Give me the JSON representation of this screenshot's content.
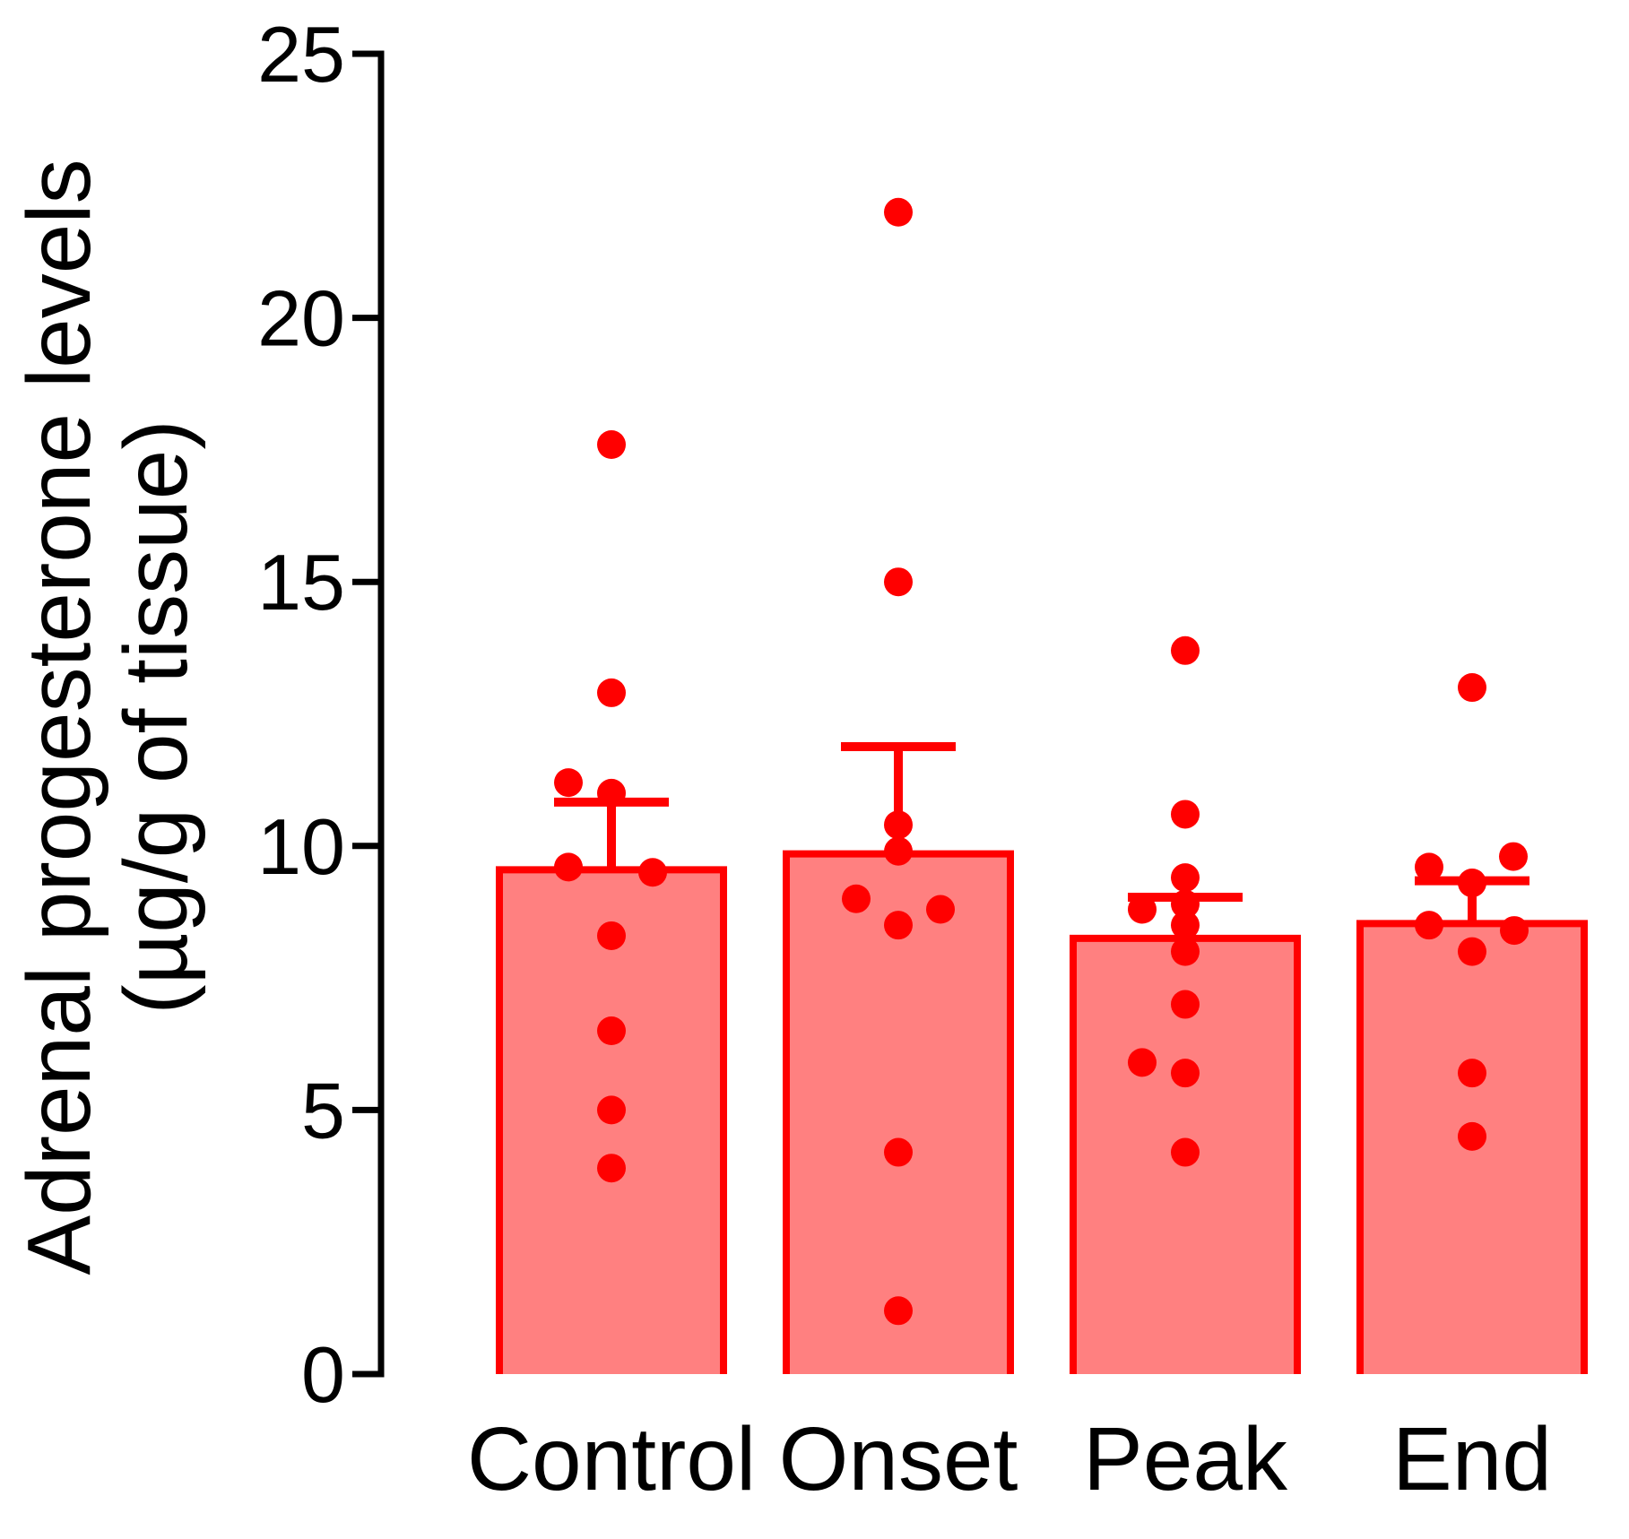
{
  "chart_data": {
    "type": "bar",
    "title": "",
    "ylabel": [
      "Adrenal progesterone levels",
      "(µg/g of tissue)"
    ],
    "xlabel": "",
    "ylim": [
      0,
      25
    ],
    "yticks": [
      0,
      5,
      10,
      15,
      20,
      25
    ],
    "grid": false,
    "legend": false,
    "colors": {
      "accent": "#ff0000",
      "bar_fill": "#ff8080",
      "axis": "#000000",
      "text": "#000000"
    },
    "categories": [
      "Control",
      "Onset",
      "Peak",
      "End"
    ],
    "error_bar_type": "SEM, upper only",
    "groups": [
      {
        "label": "Control",
        "mean": 9.55,
        "sem": 1.28,
        "points": [
          [
            17.6,
            0
          ],
          [
            12.9,
            0
          ],
          [
            11.2,
            -48
          ],
          [
            11.0,
            0
          ],
          [
            9.6,
            -48
          ],
          [
            9.5,
            46
          ],
          [
            8.3,
            0
          ],
          [
            6.5,
            0
          ],
          [
            5.0,
            0
          ],
          [
            3.9,
            0
          ]
        ]
      },
      {
        "label": "Onset",
        "mean": 9.85,
        "sem": 2.03,
        "points": [
          [
            22.0,
            0
          ],
          [
            15.0,
            0
          ],
          [
            10.4,
            0
          ],
          [
            9.9,
            0
          ],
          [
            9.0,
            -47
          ],
          [
            8.8,
            47
          ],
          [
            8.5,
            0
          ],
          [
            4.2,
            0
          ],
          [
            1.2,
            0
          ]
        ]
      },
      {
        "label": "Peak",
        "mean": 8.25,
        "sem": 0.78,
        "points": [
          [
            13.7,
            0
          ],
          [
            10.6,
            0
          ],
          [
            9.4,
            0
          ],
          [
            8.9,
            0
          ],
          [
            8.8,
            -48
          ],
          [
            8.5,
            0
          ],
          [
            8.0,
            0
          ],
          [
            7.0,
            0
          ],
          [
            5.9,
            -48
          ],
          [
            5.7,
            0
          ],
          [
            4.2,
            0
          ]
        ]
      },
      {
        "label": "End",
        "mean": 8.53,
        "sem": 0.81,
        "points": [
          [
            13.0,
            0
          ],
          [
            9.8,
            46
          ],
          [
            9.6,
            -48
          ],
          [
            9.3,
            0
          ],
          [
            8.5,
            -48
          ],
          [
            8.4,
            47
          ],
          [
            8.0,
            0
          ],
          [
            5.7,
            0
          ],
          [
            4.5,
            0
          ]
        ]
      }
    ]
  }
}
